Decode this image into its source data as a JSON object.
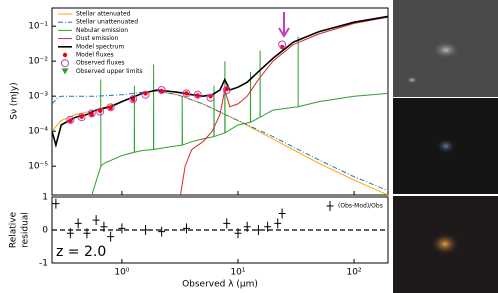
{
  "chart_data": [
    {
      "type": "line",
      "xlim": [
        0.25,
        196
      ],
      "ylim": [
        1.5e-06,
        0.33
      ],
      "log_x": true,
      "log_y": true,
      "ylabel": "Sν (mJy)",
      "legend": "upper left",
      "yticks": [
        {
          "value": 1e-05,
          "label": "10⁻⁵"
        },
        {
          "value": 0.0001,
          "label": "10⁻⁴"
        },
        {
          "value": 0.001,
          "label": "10⁻³"
        },
        {
          "value": 0.01,
          "label": "10⁻²"
        },
        {
          "value": 0.1,
          "label": "10⁻¹"
        }
      ],
      "series": [
        {
          "name": "Stellar attenuated",
          "color": "#ffa500",
          "style": "solid",
          "x": [
            0.25,
            0.3,
            0.4,
            0.6,
            1,
            1.5,
            2,
            3,
            5,
            10,
            20,
            50,
            100,
            196
          ],
          "values": [
            0.0001,
            0.0002,
            0.0003,
            0.0004,
            0.0007,
            0.0012,
            0.0014,
            0.0011,
            0.0006,
            0.0002,
            6e-05,
            1.2e-05,
            4e-06,
            1.5e-06
          ]
        },
        {
          "name": "Stellar unattenuated",
          "color": "#1f77b4",
          "style": "dashdot",
          "x": [
            0.25,
            0.28,
            0.3,
            0.4,
            0.6,
            1,
            1.5,
            2,
            3,
            5,
            10,
            20,
            50,
            100,
            196
          ],
          "values": [
            0.0006,
            0.0009,
            0.001,
            0.001,
            0.001,
            0.0011,
            0.0013,
            0.0014,
            0.0011,
            0.0006,
            0.0002,
            7e-05,
            1.5e-05,
            5e-06,
            2e-06
          ]
        },
        {
          "name": "Nebular emission",
          "color": "#2ca02c",
          "style": "solid",
          "x": [
            0.55,
            0.66,
            0.6563,
            0.66,
            0.7,
            1.0,
            1.28,
            1.282,
            1.284,
            1.5,
            1.87,
            1.875,
            1.88,
            2.5,
            3.3,
            3.31,
            3.32,
            4,
            5,
            6.2,
            6.22,
            6.24,
            7.7,
            7.72,
            7.74,
            10,
            12.8,
            12.82,
            12.84,
            15.5,
            15.52,
            15.54,
            20,
            33,
            33.02,
            33.04,
            50,
            100,
            196
          ],
          "values": [
            1.5e-06,
            1e-05,
            0.003,
            1e-05,
            1.2e-05,
            2e-05,
            2.5e-05,
            0.002,
            2.5e-05,
            2.8e-05,
            3e-05,
            0.008,
            3e-05,
            3.5e-05,
            4e-05,
            0.001,
            4e-05,
            5e-05,
            6e-05,
            7e-05,
            0.002,
            7e-05,
            9e-05,
            0.01,
            9e-05,
            0.00015,
            0.00018,
            0.005,
            0.00018,
            0.00025,
            0.02,
            0.00025,
            0.0004,
            0.0005,
            0.05,
            0.0005,
            0.0007,
            0.001,
            0.0012
          ]
        },
        {
          "name": "Dust emission",
          "color": "#d62728",
          "style": "solid",
          "x": [
            3.1,
            3.2,
            3.5,
            4,
            5,
            6,
            7,
            7.7,
            8.5,
            10,
            12,
            15,
            20,
            30,
            50,
            100,
            196
          ],
          "values": [
            1e-07,
            1.5e-06,
            1e-05,
            3e-05,
            5e-05,
            0.0001,
            0.0003,
            0.0015,
            0.0005,
            0.0006,
            0.001,
            0.003,
            0.01,
            0.03,
            0.06,
            0.12,
            0.18
          ]
        },
        {
          "name": "Model spectrum",
          "color": "#000000",
          "style": "solid",
          "x": [
            0.25,
            0.27,
            0.3,
            0.35,
            0.4,
            0.5,
            0.6,
            0.8,
            1,
            1.5,
            2,
            3,
            4,
            5,
            6,
            7,
            7.7,
            8.5,
            10,
            12,
            15,
            20,
            30,
            50,
            100,
            196
          ],
          "values": [
            0.0001,
            4e-05,
            0.00015,
            0.0002,
            0.00025,
            0.0003,
            0.0004,
            0.0005,
            0.0007,
            0.0012,
            0.0015,
            0.0013,
            0.0011,
            0.001,
            0.0011,
            0.0015,
            0.003,
            0.0015,
            0.0018,
            0.0025,
            0.005,
            0.012,
            0.035,
            0.07,
            0.13,
            0.19
          ]
        },
        {
          "name": "Model fluxes",
          "color": "#ff0000",
          "marker": "dot",
          "x": [
            0.36,
            0.45,
            0.55,
            0.65,
            0.8,
            1.25,
            1.6,
            2.2,
            3.6,
            4.5,
            5.8,
            8,
            24
          ],
          "values": [
            0.0002,
            0.00026,
            0.0003,
            0.00038,
            0.00046,
            0.0008,
            0.0012,
            0.0014,
            0.0012,
            0.00105,
            0.001,
            0.0016,
            0.025
          ]
        },
        {
          "name": "Observed fluxes",
          "color": "#c040c0",
          "marker": "circle",
          "x": [
            0.36,
            0.45,
            0.55,
            0.65,
            0.8,
            1.25,
            1.6,
            2.2,
            3.6,
            4.5,
            5.8,
            8,
            24
          ],
          "values": [
            0.00021,
            0.00025,
            0.00032,
            0.00036,
            0.00048,
            0.00082,
            0.0011,
            0.0015,
            0.0012,
            0.0011,
            0.0009,
            0.0015,
            0.03
          ]
        },
        {
          "name": "Observed upper limits",
          "color": "#2ca02c",
          "marker": "triangle",
          "x": [],
          "values": []
        }
      ]
    },
    {
      "type": "scatter",
      "xlim": [
        0.25,
        196
      ],
      "ylim": [
        -1,
        1
      ],
      "log_x": true,
      "yticks": [
        -1,
        0,
        1
      ],
      "xticks": [
        {
          "value": 1,
          "label": "10⁰"
        },
        {
          "value": 10,
          "label": "10¹"
        },
        {
          "value": 100,
          "label": "10²"
        }
      ],
      "xlabel": "Observed λ (μm)",
      "ylabel": [
        "Relative",
        "residual"
      ],
      "annotation": "z = 2.0",
      "zero_line": true,
      "legend": "upper right",
      "series": [
        {
          "name": "(Obs-Mod)/Obs",
          "color": "#000000",
          "marker": "plus",
          "x": [
            0.27,
            0.36,
            0.42,
            0.5,
            0.6,
            0.7,
            0.8,
            1.0,
            1.6,
            2.2,
            3.6,
            8,
            10,
            12,
            15,
            18,
            22,
            24
          ],
          "values": [
            0.8,
            -0.1,
            0.2,
            -0.1,
            0.3,
            0.1,
            -0.2,
            0.05,
            0,
            -0.05,
            0.05,
            0.2,
            -0.1,
            0.1,
            0,
            0.1,
            0.2,
            0.5
          ]
        }
      ]
    }
  ]
}
